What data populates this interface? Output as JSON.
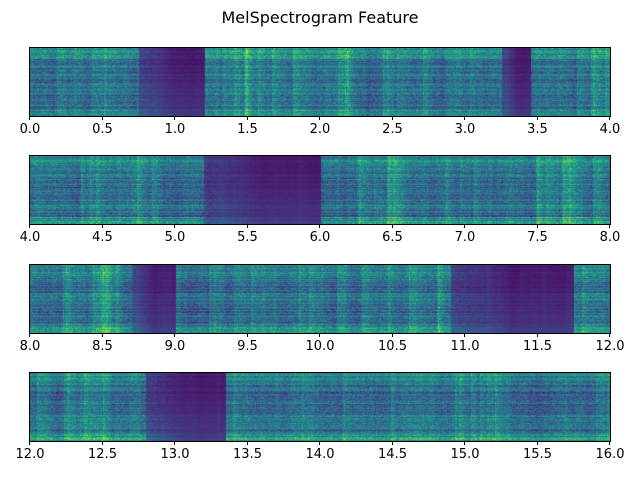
{
  "figure": {
    "title": "MelSpectrogram Feature"
  },
  "chart_data": {
    "type": "heatmap",
    "title": "MelSpectrogram Feature",
    "colormap": "viridis",
    "xlabel": "",
    "ylabel": "",
    "y_ticks_visible": false,
    "panels": [
      {
        "xlim": [
          0.0,
          4.0
        ],
        "tick_labels": [
          "0.0",
          "0.5",
          "1.0",
          "1.5",
          "2.0",
          "2.5",
          "3.0",
          "3.5",
          "4.0"
        ],
        "low_energy_intervals_sec": [
          [
            0.75,
            1.2
          ],
          [
            3.25,
            3.45
          ]
        ]
      },
      {
        "xlim": [
          4.0,
          8.0
        ],
        "tick_labels": [
          "4.0",
          "4.5",
          "5.0",
          "5.5",
          "6.0",
          "6.5",
          "7.0",
          "7.5",
          "8.0"
        ],
        "low_energy_intervals_sec": [
          [
            5.2,
            6.0
          ]
        ]
      },
      {
        "xlim": [
          8.0,
          12.0
        ],
        "tick_labels": [
          "8.0",
          "8.5",
          "9.0",
          "9.5",
          "10.0",
          "10.5",
          "11.0",
          "11.5",
          "12.0"
        ],
        "low_energy_intervals_sec": [
          [
            8.7,
            9.0
          ],
          [
            10.9,
            11.75
          ]
        ]
      },
      {
        "xlim": [
          12.0,
          16.0
        ],
        "tick_labels": [
          "12.0",
          "12.5",
          "13.0",
          "13.5",
          "14.0",
          "14.5",
          "15.0",
          "15.5",
          "16.0"
        ],
        "low_energy_intervals_sec": [
          [
            12.8,
            13.35
          ]
        ]
      }
    ]
  }
}
